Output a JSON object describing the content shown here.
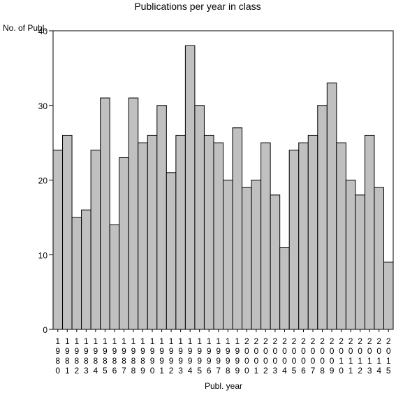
{
  "chart_data": {
    "type": "bar",
    "title": "Publications per year in class",
    "ylabel": "No. of Publ.",
    "xlabel": "Publ. year",
    "ylim": [
      0,
      40
    ],
    "yticks": [
      0,
      10,
      20,
      30,
      40
    ],
    "grid": false,
    "colors": {
      "bar_fill": "#c0c0c0",
      "bar_stroke": "#000000",
      "axis": "#000000",
      "background": "#ffffff"
    },
    "categories": [
      "1980",
      "1981",
      "1982",
      "1983",
      "1984",
      "1985",
      "1986",
      "1987",
      "1988",
      "1989",
      "1990",
      "1991",
      "1992",
      "1993",
      "1994",
      "1995",
      "1996",
      "1997",
      "1998",
      "1999",
      "2000",
      "2001",
      "2002",
      "2003",
      "2004",
      "2005",
      "2006",
      "2007",
      "2008",
      "2009",
      "2010",
      "2011",
      "2012",
      "2013",
      "2014",
      "2015"
    ],
    "values": [
      24,
      26,
      15,
      16,
      24,
      31,
      14,
      23,
      31,
      25,
      26,
      30,
      21,
      26,
      38,
      30,
      26,
      25,
      20,
      27,
      19,
      20,
      25,
      18,
      11,
      24,
      25,
      26,
      30,
      33,
      25,
      20,
      18,
      26,
      19,
      9
    ]
  }
}
